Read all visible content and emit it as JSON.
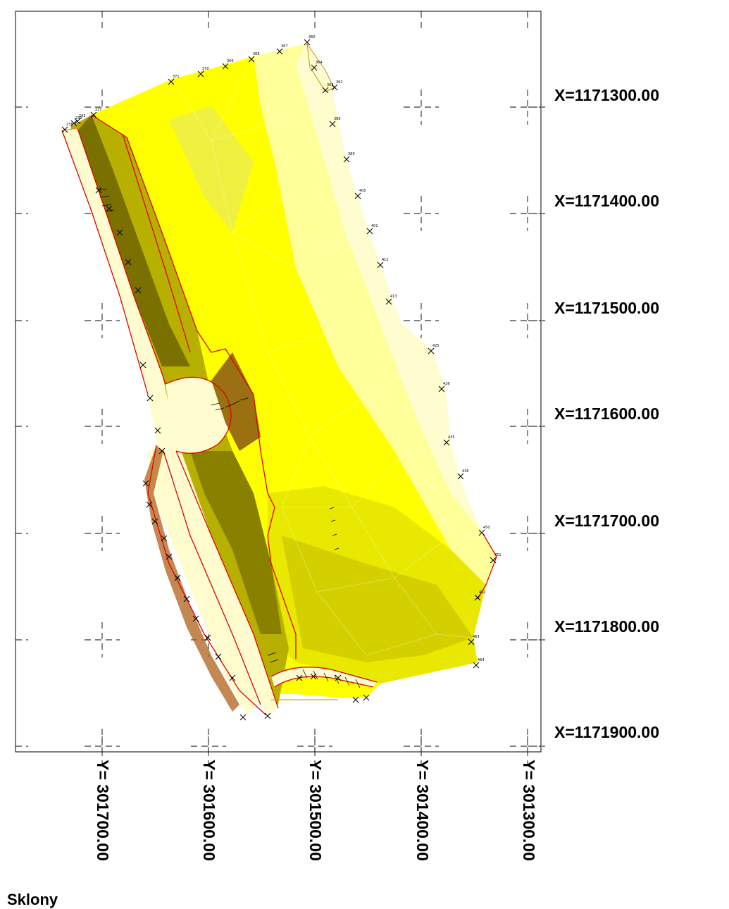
{
  "x_axis_labels": [
    "X=1171300.00",
    "X=1171400.00",
    "X=1171500.00",
    "X=1171600.00",
    "X=1171700.00",
    "X=1171800.00",
    "X=1171900.00"
  ],
  "y_axis_labels": [
    "Y= 301700.00",
    "Y= 301600.00",
    "Y= 301500.00",
    "Y= 301400.00",
    "Y= 301300.00"
  ],
  "legend": {
    "title": "Sklony"
  },
  "point_labels": [
    "238",
    "239",
    "242",
    "237",
    "371",
    "370",
    "369",
    "368",
    "367",
    "366",
    "364",
    "363",
    "362",
    "388",
    "389",
    "400",
    "401",
    "412",
    "413",
    "425",
    "426",
    "435",
    "436",
    "450",
    "451",
    "452",
    "463",
    "464"
  ],
  "colors": {
    "boundary": "#e00000",
    "pale": "#fffdd0",
    "light": "#ffff99",
    "yellow": "#ffff00",
    "mid": "#e8e800",
    "olive": "#b8b000",
    "dark_olive": "#7a7000",
    "brown": "#b0601a",
    "grid": "#000000"
  }
}
